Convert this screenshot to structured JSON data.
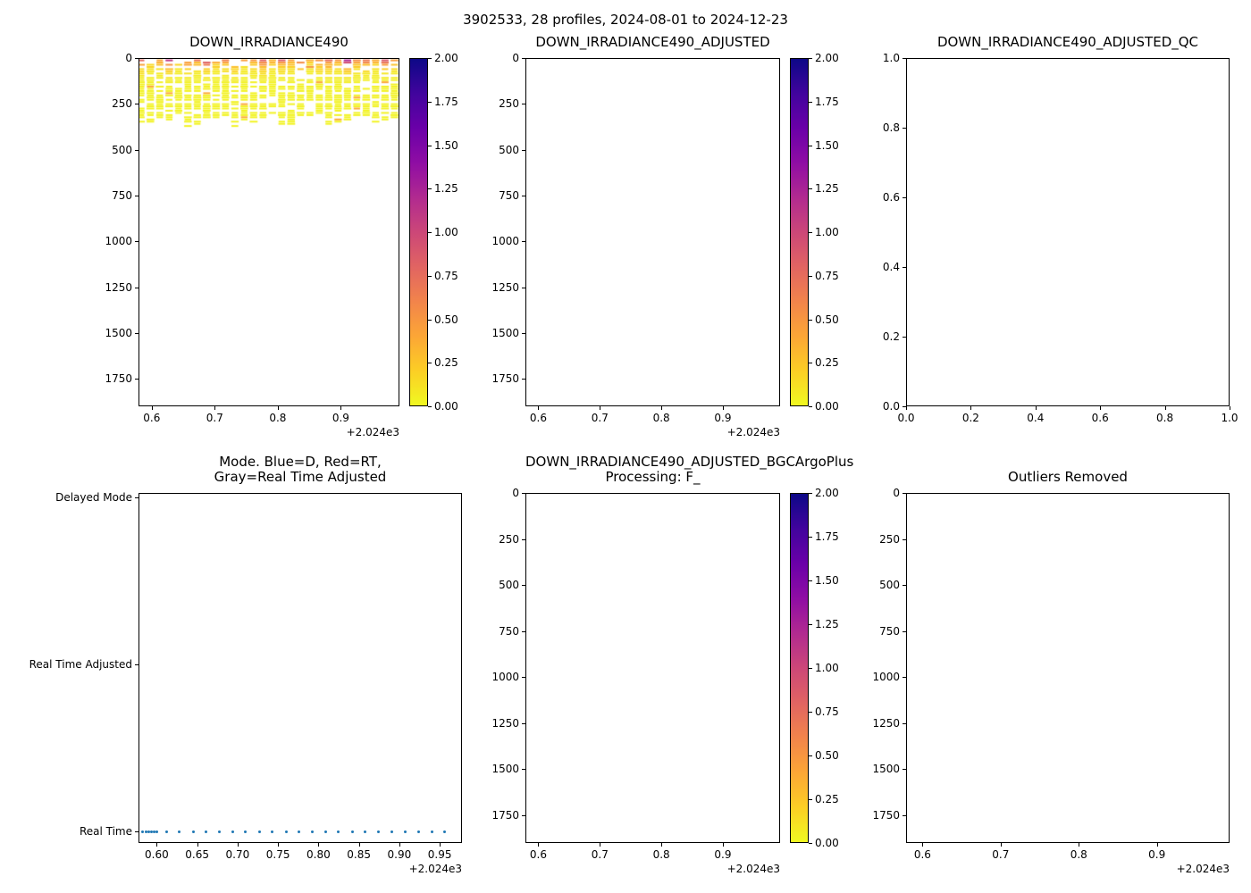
{
  "figure": {
    "title": "3902533, 28 profiles, 2024-08-01 to 2024-12-23"
  },
  "colors": {
    "plasma": [
      "#0d0887",
      "#41049d",
      "#6a00a8",
      "#8f0da4",
      "#b12a90",
      "#cc4778",
      "#e16462",
      "#f2844b",
      "#fca636",
      "#fcce25",
      "#f0f921"
    ],
    "marker_blue": "#1f77b4",
    "axis": "#000000",
    "background": "#ffffff"
  },
  "chart_data": [
    {
      "id": "down_irradiance490",
      "type": "heatmap",
      "title_lines": [
        "DOWN_IRRADIANCE490"
      ],
      "xlim": [
        2024.579,
        2024.993
      ],
      "x_tick_values": [
        2024.6,
        2024.7,
        2024.8,
        2024.9
      ],
      "x_tick_labels": [
        "0.6",
        "0.7",
        "0.8",
        "0.9"
      ],
      "x_offset_label": "+2.024e3",
      "ylim": [
        0,
        1900
      ],
      "y_tick_values": [
        0,
        250,
        500,
        750,
        1000,
        1250,
        1500,
        1750
      ],
      "y_tick_labels": [
        "0",
        "250",
        "500",
        "750",
        "1000",
        "1250",
        "1500",
        "1750"
      ],
      "colorbar": {
        "vmin": 0,
        "vmax": 2,
        "tick_labels_top_to_bottom": [
          "2.00",
          "1.75",
          "1.50",
          "1.25",
          "1.00",
          "0.75",
          "0.50",
          "0.25",
          "0.00"
        ]
      },
      "heatmap": {
        "n_profiles": 28,
        "x_extent": [
          2024.583,
          2024.985
        ],
        "depth_extent": [
          0,
          370
        ],
        "depth_step": 12,
        "surface_values": [
          0.85,
          0.4,
          0.55,
          1.1,
          0.35,
          0.9,
          0.5,
          1.2,
          0.45,
          0.7,
          1.0,
          0.38,
          0.6,
          1.15,
          0.42,
          0.8,
          0.52,
          1.05,
          0.36,
          0.65,
          0.95,
          0.48,
          1.25,
          0.58,
          0.75,
          0.44,
          0.88,
          0.5
        ],
        "baseline_value": 0.03,
        "decay_depth": 30,
        "gap_fraction": 0.15
      }
    },
    {
      "id": "down_irradiance490_adjusted",
      "type": "heatmap",
      "title_lines": [
        "DOWN_IRRADIANCE490_ADJUSTED"
      ],
      "xlim": [
        2024.579,
        2024.993
      ],
      "x_tick_values": [
        2024.6,
        2024.7,
        2024.8,
        2024.9
      ],
      "x_tick_labels": [
        "0.6",
        "0.7",
        "0.8",
        "0.9"
      ],
      "x_offset_label": "+2.024e3",
      "ylim": [
        0,
        1900
      ],
      "y_tick_values": [
        0,
        250,
        500,
        750,
        1000,
        1250,
        1500,
        1750
      ],
      "y_tick_labels": [
        "0",
        "250",
        "500",
        "750",
        "1000",
        "1250",
        "1500",
        "1750"
      ],
      "colorbar": {
        "vmin": 0,
        "vmax": 2,
        "tick_labels_top_to_bottom": [
          "2.00",
          "1.75",
          "1.50",
          "1.25",
          "1.00",
          "0.75",
          "0.50",
          "0.25",
          "0.00"
        ]
      }
    },
    {
      "id": "down_irradiance490_adjusted_qc",
      "type": "empty",
      "title_lines": [
        "DOWN_IRRADIANCE490_ADJUSTED_QC"
      ],
      "xlim": [
        0,
        1
      ],
      "x_tick_values": [
        0,
        0.2,
        0.4,
        0.6,
        0.8,
        1.0
      ],
      "x_tick_labels": [
        "0.0",
        "0.2",
        "0.4",
        "0.6",
        "0.8",
        "1.0"
      ],
      "ylim": [
        1.0,
        0.0
      ],
      "y_tick_values": [
        1.0,
        0.8,
        0.6,
        0.4,
        0.2,
        0.0
      ],
      "y_tick_labels": [
        "1.0",
        "0.8",
        "0.6",
        "0.4",
        "0.2",
        "0.0"
      ]
    },
    {
      "id": "mode",
      "type": "scatter",
      "title_lines": [
        "Mode. Blue=D, Red=RT,",
        "Gray=Real Time Adjusted"
      ],
      "xlim": [
        2024.5775,
        2024.9775
      ],
      "x_tick_values": [
        2024.6,
        2024.65,
        2024.7,
        2024.75,
        2024.8,
        2024.85,
        2024.9,
        2024.95
      ],
      "x_tick_labels": [
        "0.60",
        "0.65",
        "0.70",
        "0.75",
        "0.80",
        "0.85",
        "0.90",
        "0.95"
      ],
      "x_offset_label": "+2.024e3",
      "y_categories": [
        "Delayed Mode",
        "Real Time Adjusted",
        "Real Time"
      ],
      "points": {
        "category": "Real Time",
        "color_key": "marker_blue",
        "x": [
          2024.583,
          2024.5865,
          2024.59,
          2024.5935,
          2024.597,
          2024.6005,
          2024.612,
          2024.628,
          2024.645,
          2024.661,
          2024.678,
          2024.694,
          2024.71,
          2024.727,
          2024.743,
          2024.76,
          2024.776,
          2024.792,
          2024.809,
          2024.825,
          2024.842,
          2024.858,
          2024.874,
          2024.891,
          2024.907,
          2024.924,
          2024.94,
          2024.956
        ]
      }
    },
    {
      "id": "down_irradiance490_adjusted_bgcargoplus",
      "type": "heatmap",
      "title_lines": [
        "DOWN_IRRADIANCE490_ADJUSTED_BGCArgoPlus",
        "Processing: F_"
      ],
      "xlim": [
        2024.579,
        2024.993
      ],
      "x_tick_values": [
        2024.6,
        2024.7,
        2024.8,
        2024.9
      ],
      "x_tick_labels": [
        "0.6",
        "0.7",
        "0.8",
        "0.9"
      ],
      "x_offset_label": "+2.024e3",
      "ylim": [
        0,
        1900
      ],
      "y_tick_values": [
        0,
        250,
        500,
        750,
        1000,
        1250,
        1500,
        1750
      ],
      "y_tick_labels": [
        "0",
        "250",
        "500",
        "750",
        "1000",
        "1250",
        "1500",
        "1750"
      ],
      "colorbar": {
        "vmin": 0,
        "vmax": 2,
        "tick_labels_top_to_bottom": [
          "2.00",
          "1.75",
          "1.50",
          "1.25",
          "1.00",
          "0.75",
          "0.50",
          "0.25",
          "0.00"
        ]
      }
    },
    {
      "id": "outliers_removed",
      "type": "empty",
      "title_lines": [
        "Outliers Removed"
      ],
      "xlim": [
        2024.579,
        2024.993
      ],
      "x_tick_values": [
        2024.6,
        2024.7,
        2024.8,
        2024.9
      ],
      "x_tick_labels": [
        "0.6",
        "0.7",
        "0.8",
        "0.9"
      ],
      "x_offset_label": "+2.024e3",
      "ylim": [
        0,
        1900
      ],
      "y_tick_values": [
        0,
        250,
        500,
        750,
        1000,
        1250,
        1500,
        1750
      ],
      "y_tick_labels": [
        "0",
        "250",
        "500",
        "750",
        "1000",
        "1250",
        "1500",
        "1750"
      ]
    }
  ]
}
